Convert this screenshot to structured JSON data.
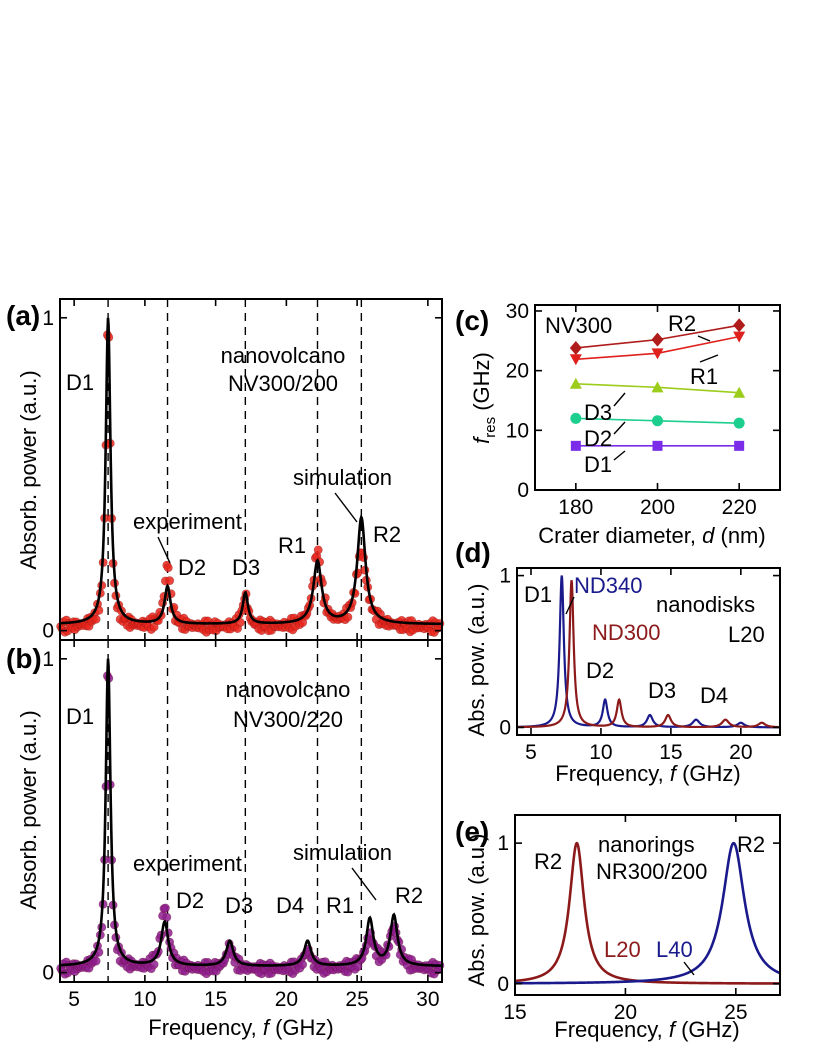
{
  "chart_data": [
    {
      "panel": "(a)",
      "type": "line",
      "title": "nanovolcano NV300/200",
      "title_lines": [
        "nanovolcano",
        "NV300/200"
      ],
      "xlabel_text": "Frequency, ",
      "xlabel_var": "f",
      "xlabel_unit": " (GHz)",
      "ylabel": "Absorb. power (a.u.)",
      "xlim": [
        4,
        31
      ],
      "ylim": [
        -0.03,
        1.06
      ],
      "x_ticks": [
        5,
        10,
        15,
        20,
        25,
        30
      ],
      "y_ticks": [
        0,
        1
      ],
      "grid": false,
      "dashed_lines_x": [
        7.4,
        11.6,
        17.1,
        22.2,
        25.3
      ],
      "peak_labels": [
        "D1",
        "D2",
        "D3",
        "R1",
        "R2"
      ],
      "annotations": [
        "experiment",
        "simulation"
      ],
      "series": [
        {
          "name": "experiment",
          "style": "markers",
          "color": "#e8261c",
          "peaks": [
            [
              7.4,
              1.0,
              0.18
            ],
            [
              11.6,
              0.2,
              0.25
            ],
            [
              17.1,
              0.1,
              0.22
            ],
            [
              22.2,
              0.24,
              0.35
            ],
            [
              25.3,
              0.24,
              0.45
            ]
          ],
          "baseline": 0.01
        },
        {
          "name": "simulation",
          "style": "line",
          "color": "#000000",
          "peaks": [
            [
              7.4,
              0.98,
              0.2
            ],
            [
              11.6,
              0.12,
              0.25
            ],
            [
              17.1,
              0.1,
              0.22
            ],
            [
              22.2,
              0.2,
              0.35
            ],
            [
              25.3,
              0.34,
              0.35
            ]
          ],
          "baseline": 0.02
        }
      ]
    },
    {
      "panel": "(b)",
      "type": "line",
      "title": "nanovolcano NV300/220",
      "title_lines": [
        "nanovolcano",
        "NV300/220"
      ],
      "xlabel_text": "Frequency, ",
      "xlabel_var": "f",
      "xlabel_unit": " (GHz)",
      "ylabel": "Absorb. power (a.u.)",
      "xlim": [
        4,
        31
      ],
      "ylim": [
        -0.03,
        1.06
      ],
      "x_ticks": [
        5,
        10,
        15,
        20,
        25,
        30
      ],
      "y_ticks": [
        0,
        1
      ],
      "grid": false,
      "dashed_lines_x": [
        7.4,
        11.6,
        17.1,
        22.2,
        25.3
      ],
      "peak_labels": [
        "D1",
        "D2",
        "D3",
        "D4",
        "R1",
        "R2"
      ],
      "annotations": [
        "experiment",
        "simulation"
      ],
      "series": [
        {
          "name": "experiment",
          "style": "markers",
          "color": "#8e1d8e",
          "peaks": [
            [
              7.4,
              1.0,
              0.18
            ],
            [
              11.4,
              0.2,
              0.3
            ],
            [
              16.0,
              0.07,
              0.3
            ],
            [
              21.5,
              0.06,
              0.3
            ],
            [
              25.9,
              0.1,
              0.4
            ],
            [
              27.6,
              0.13,
              0.4
            ]
          ],
          "baseline": 0.01
        },
        {
          "name": "simulation",
          "style": "line",
          "color": "#000000",
          "peaks": [
            [
              7.4,
              0.98,
              0.2
            ],
            [
              11.4,
              0.14,
              0.3
            ],
            [
              16.0,
              0.08,
              0.3
            ],
            [
              21.5,
              0.08,
              0.3
            ],
            [
              25.9,
              0.15,
              0.3
            ],
            [
              27.6,
              0.16,
              0.3
            ]
          ],
          "baseline": 0.02
        }
      ]
    },
    {
      "panel": "(c)",
      "type": "scatter",
      "title": "NV300",
      "xlabel_text": "Crater diameter, ",
      "xlabel_var": "d",
      "xlabel_unit": " (nm)",
      "ylabel_var": "f",
      "ylabel_sub": "res",
      "ylabel_unit": " (GHz)",
      "x": [
        180,
        200,
        220
      ],
      "xlim": [
        170,
        230
      ],
      "ylim": [
        0,
        31
      ],
      "x_ticks": [
        180,
        200,
        220
      ],
      "y_ticks": [
        0,
        10,
        20,
        30
      ],
      "grid": false,
      "series": [
        {
          "name": "R2",
          "marker": "diamond",
          "color": "#b01c1c",
          "values": [
            23.8,
            25.2,
            27.6
          ]
        },
        {
          "name": "R1",
          "marker": "triangle-down",
          "color": "#e0201c",
          "values": [
            21.9,
            22.9,
            25.7
          ]
        },
        {
          "name": "D3",
          "marker": "triangle-up",
          "color": "#9ccc1c",
          "values": [
            17.8,
            17.2,
            16.3
          ]
        },
        {
          "name": "D2",
          "marker": "circle",
          "color": "#1ccf8e",
          "values": [
            12.0,
            11.6,
            11.2
          ]
        },
        {
          "name": "D1",
          "marker": "square",
          "color": "#7a2ce8",
          "values": [
            7.4,
            7.4,
            7.4
          ]
        }
      ]
    },
    {
      "panel": "(d)",
      "type": "line",
      "title": "nanodisks",
      "subtitle": "L20",
      "xlabel_text": "Frequency, ",
      "xlabel_var": "f",
      "xlabel_unit": " (GHz)",
      "ylabel": "Abs. pow. (a.u.)",
      "xlim": [
        4,
        22.8
      ],
      "ylim": [
        -0.05,
        1.05
      ],
      "x_ticks": [
        5,
        10,
        15,
        20
      ],
      "y_ticks": [
        0,
        1
      ],
      "grid": false,
      "peak_labels": [
        "D1",
        "D2",
        "D3",
        "D4"
      ],
      "series": [
        {
          "name": "ND340",
          "color": "#1a1a8c",
          "peaks": [
            [
              7.2,
              1.0,
              0.18
            ],
            [
              10.3,
              0.18,
              0.2
            ],
            [
              13.5,
              0.08,
              0.25
            ],
            [
              16.8,
              0.05,
              0.3
            ],
            [
              20.0,
              0.03,
              0.3
            ]
          ],
          "baseline": 0.0
        },
        {
          "name": "ND300",
          "color": "#8c1a1a",
          "peaks": [
            [
              7.9,
              0.97,
              0.18
            ],
            [
              11.3,
              0.18,
              0.2
            ],
            [
              14.8,
              0.08,
              0.25
            ],
            [
              18.9,
              0.05,
              0.3
            ],
            [
              21.5,
              0.03,
              0.3
            ]
          ],
          "baseline": 0.0
        }
      ]
    },
    {
      "panel": "(e)",
      "type": "line",
      "title": "nanorings",
      "subtitle": "NR300/200",
      "xlabel_text": "Frequency, ",
      "xlabel_var": "f",
      "xlabel_unit": " (GHz)",
      "ylabel": "Abs. pow. (a.u.)",
      "xlim": [
        15,
        27
      ],
      "ylim": [
        -0.08,
        1.2
      ],
      "x_ticks": [
        15,
        20,
        25
      ],
      "y_ticks": [
        0,
        1
      ],
      "grid": false,
      "peak_labels": [
        "R2",
        "R2"
      ],
      "series": [
        {
          "name": "L20",
          "color": "#8c1a1a",
          "peaks": [
            [
              17.8,
              1.0,
              0.4
            ]
          ],
          "baseline": 0.0
        },
        {
          "name": "L40",
          "color": "#1a1a8c",
          "peaks": [
            [
              24.9,
              1.0,
              0.6
            ]
          ],
          "baseline": 0.0
        }
      ]
    }
  ]
}
